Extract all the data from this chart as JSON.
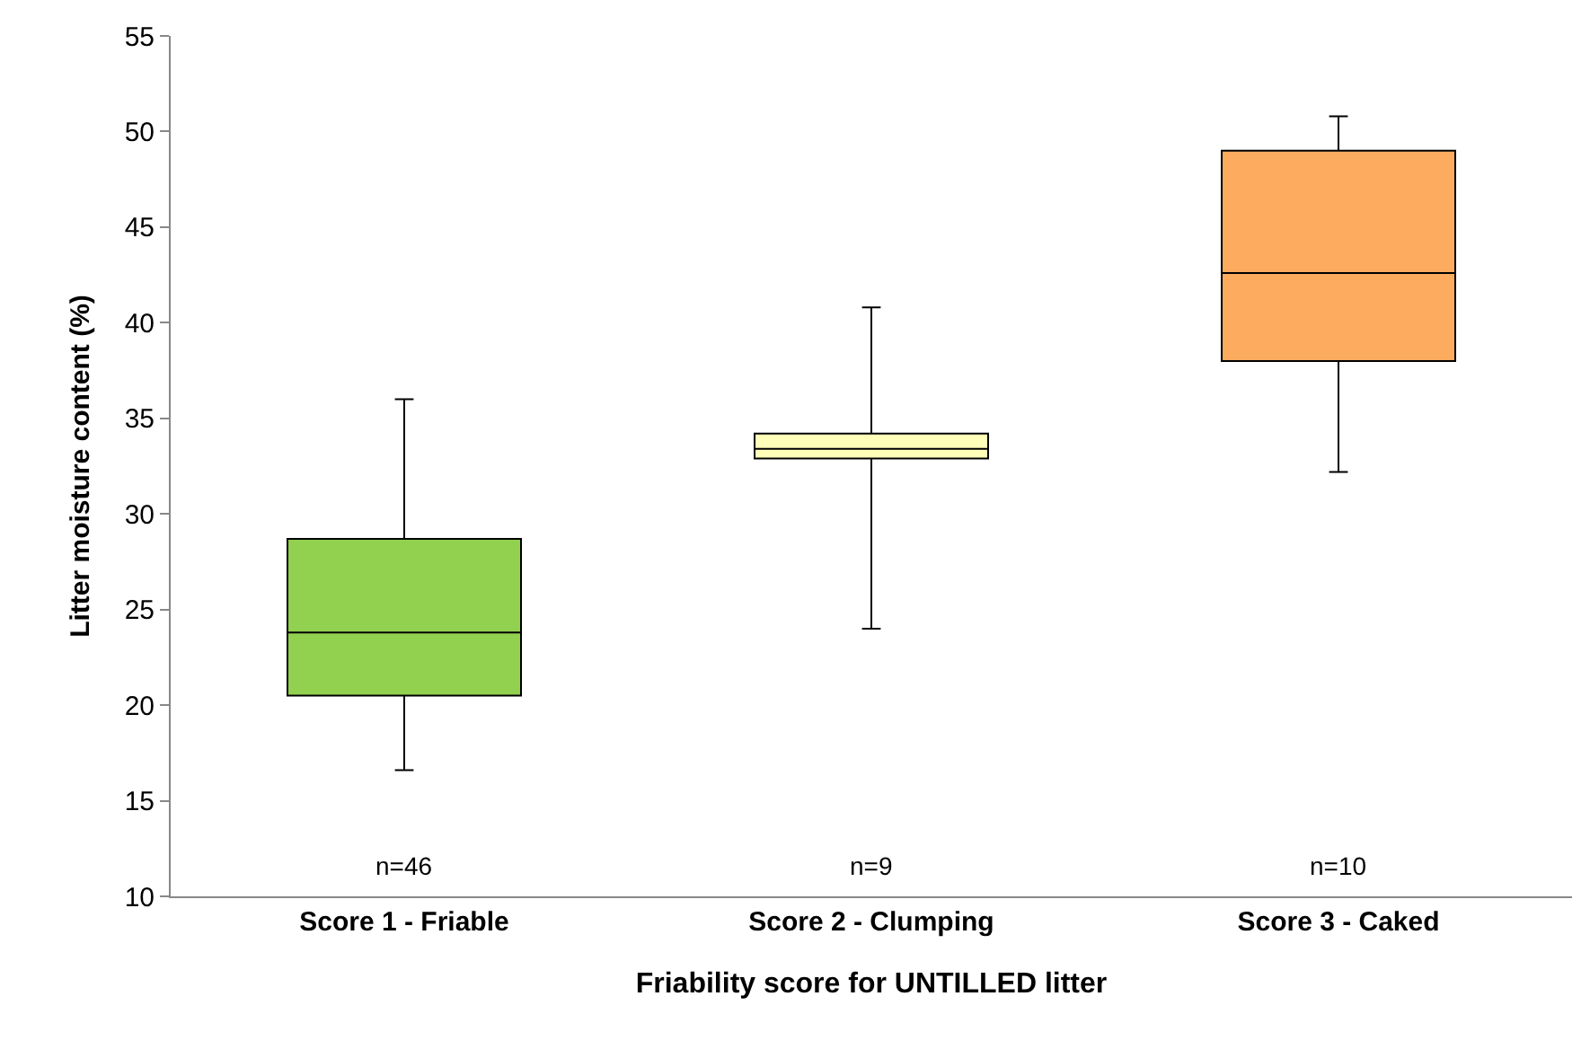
{
  "chart_data": {
    "type": "box",
    "xlabel": "Friability score for UNTILLED litter",
    "ylabel": "Litter moisture content (%)",
    "categories": [
      "Score 1 - Friable",
      "Score 2 - Clumping",
      "Score 3 - Caked"
    ],
    "colors": [
      "#92d050",
      "#ffffb9",
      "#fcab5f"
    ],
    "boxes": [
      {
        "low": 16.6,
        "q1": 20.5,
        "median": 23.8,
        "q3": 28.7,
        "high": 36.0
      },
      {
        "low": 24.0,
        "q1": 32.9,
        "median": 33.4,
        "q3": 34.2,
        "high": 40.8
      },
      {
        "low": 32.2,
        "q1": 38.0,
        "median": 42.6,
        "q3": 49.0,
        "high": 50.8
      }
    ],
    "ylim": [
      10,
      55
    ],
    "yticks": [
      10,
      15,
      20,
      25,
      30,
      35,
      40,
      45,
      50,
      55
    ],
    "annotations": [
      "n=46",
      "n=9",
      "n=10"
    ]
  }
}
